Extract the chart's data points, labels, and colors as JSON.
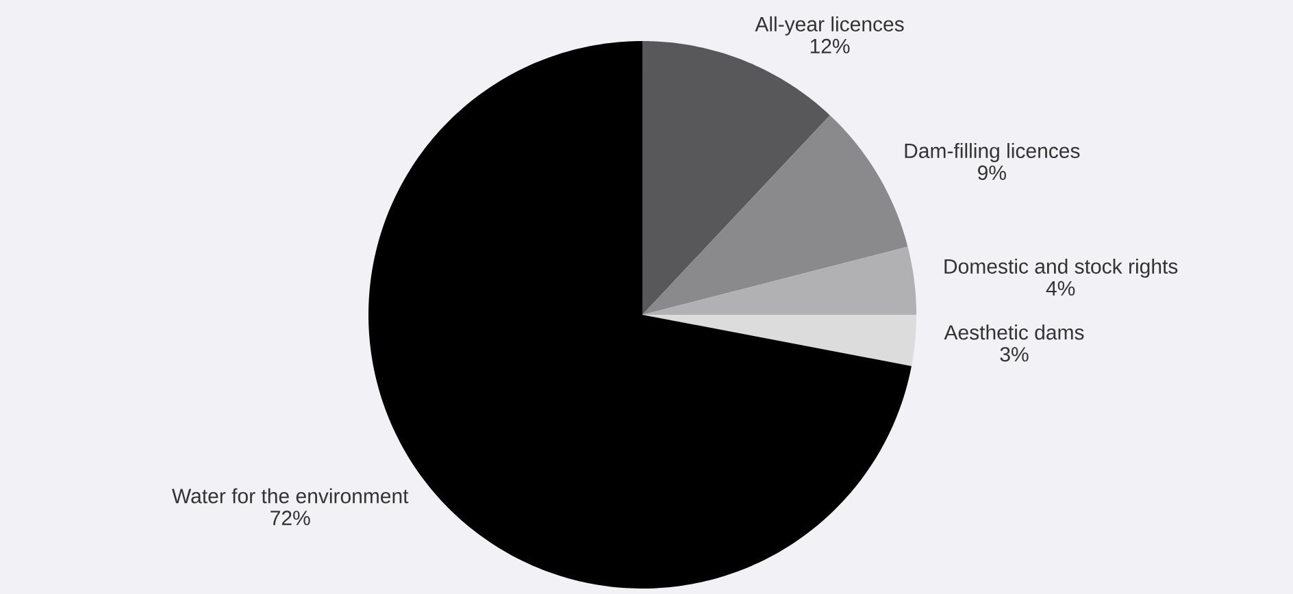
{
  "chart_data": {
    "type": "pie",
    "categories": [
      "All-year licences",
      "Dam-filling licences",
      "Domestic and stock rights",
      "Aesthetic dams",
      "Water for the environment"
    ],
    "values": [
      12,
      9,
      4,
      3,
      72
    ],
    "value_labels": [
      "12%",
      "9%",
      "4%",
      "3%",
      "72%"
    ],
    "colors": [
      "#58585a",
      "#8a8a8c",
      "#b1b1b3",
      "#dcdcdc",
      "#000000"
    ]
  }
}
